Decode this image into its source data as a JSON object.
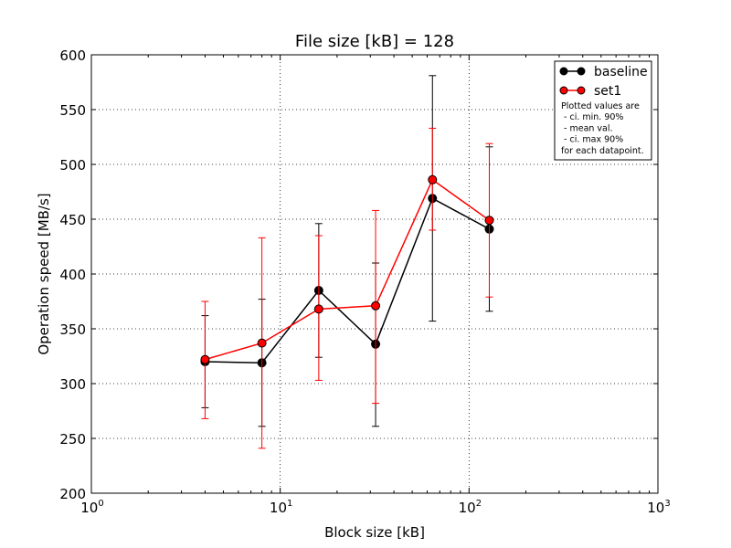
{
  "chart_data": {
    "type": "line",
    "title": "File size [kB] = 128",
    "xlabel": "Block size [kB]",
    "ylabel": "Operation speed [MB/s]",
    "xscale": "log",
    "xlim": [
      1,
      1000
    ],
    "ylim": [
      200,
      600
    ],
    "x_ticks": [
      1,
      10,
      100,
      1000
    ],
    "x_tick_labels": [
      {
        "base": "10",
        "exp": "0"
      },
      {
        "base": "10",
        "exp": "1"
      },
      {
        "base": "10",
        "exp": "2"
      },
      {
        "base": "10",
        "exp": "3"
      }
    ],
    "y_ticks": [
      200,
      250,
      300,
      350,
      400,
      450,
      500,
      550,
      600
    ],
    "y_tick_labels": [
      "200",
      "250",
      "300",
      "350",
      "400",
      "450",
      "500",
      "550",
      "600"
    ],
    "grid": true,
    "legend_position": "top-right",
    "x": [
      4,
      8,
      16,
      32,
      64,
      128
    ],
    "series": [
      {
        "name": "baseline",
        "color": "#000000",
        "values": [
          320,
          319,
          385,
          336,
          469,
          441
        ],
        "ci_min": [
          278,
          261,
          324,
          261,
          357,
          366
        ],
        "ci_max": [
          362,
          377,
          446,
          410,
          581,
          516
        ]
      },
      {
        "name": "set1",
        "color": "#ff0000",
        "values": [
          322,
          337,
          368,
          371,
          486,
          449
        ],
        "ci_min": [
          268,
          241,
          303,
          282,
          440,
          379
        ],
        "ci_max": [
          375,
          433,
          435,
          458,
          533,
          519
        ]
      }
    ],
    "legend_note": [
      "Plotted values are",
      " - ci. min. 90%",
      " - mean val.",
      " - ci. max 90%",
      "for each datapoint."
    ]
  }
}
